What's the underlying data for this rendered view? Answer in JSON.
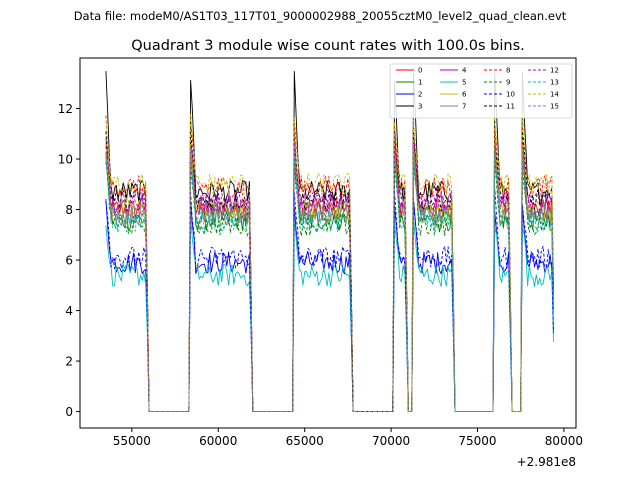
{
  "suptitle": "Data file: modeM0/AS1T03_117T01_9000002988_20055cztM0_level2_quad_clean.evt",
  "chart_data": {
    "type": "line",
    "title": "Quadrant 3 module wise count rates with 100.0s bins.",
    "xlabel": "",
    "ylabel": "",
    "x_offset_label": "+2.981e8",
    "xlim": [
      52000,
      80700
    ],
    "ylim": [
      -0.65,
      14.0
    ],
    "xticks": [
      55000,
      60000,
      65000,
      70000,
      75000,
      80000
    ],
    "xtick_labels": [
      "55000",
      "60000",
      "65000",
      "70000",
      "75000",
      "80000"
    ],
    "yticks": [
      0,
      2,
      4,
      6,
      8,
      10,
      12
    ],
    "ytick_labels": [
      "0",
      "2",
      "4",
      "6",
      "8",
      "10",
      "12"
    ],
    "legend_position": "top-right",
    "segments": [
      {
        "start": 53500,
        "end": 55900
      },
      {
        "start": 58400,
        "end": 61900
      },
      {
        "start": 64400,
        "end": 67700
      },
      {
        "start": 70200,
        "end": 70900
      },
      {
        "start": 71300,
        "end": 73600
      },
      {
        "start": 76000,
        "end": 76900
      },
      {
        "start": 77600,
        "end": 79400
      }
    ],
    "zero_level": 0,
    "series": [
      {
        "name": "0",
        "color": "#ff0000",
        "dashed": false,
        "level": 8.0,
        "peak": 10.8
      },
      {
        "name": "1",
        "color": "#008000",
        "dashed": false,
        "level": 7.6,
        "peak": 10.2
      },
      {
        "name": "2",
        "color": "#0000ff",
        "dashed": false,
        "level": 5.9,
        "peak": 8.2
      },
      {
        "name": "3",
        "color": "#000000",
        "dashed": false,
        "level": 8.7,
        "peak": 13.3
      },
      {
        "name": "4",
        "color": "#bf00bf",
        "dashed": false,
        "level": 8.2,
        "peak": 10.6
      },
      {
        "name": "5",
        "color": "#00bfbf",
        "dashed": false,
        "level": 5.4,
        "peak": 7.5
      },
      {
        "name": "6",
        "color": "#bfbf00",
        "dashed": false,
        "level": 8.0,
        "peak": 10.5
      },
      {
        "name": "7",
        "color": "#808080",
        "dashed": false,
        "level": 7.8,
        "peak": 10.3
      },
      {
        "name": "8",
        "color": "#ff0000",
        "dashed": true,
        "level": 8.9,
        "peak": 11.5
      },
      {
        "name": "9",
        "color": "#008000",
        "dashed": true,
        "level": 7.4,
        "peak": 10.0
      },
      {
        "name": "10",
        "color": "#0000ff",
        "dashed": true,
        "level": 6.1,
        "peak": 8.5
      },
      {
        "name": "11",
        "color": "#000000",
        "dashed": true,
        "level": 8.4,
        "peak": 11.0
      },
      {
        "name": "12",
        "color": "#bf00bf",
        "dashed": true,
        "level": 8.3,
        "peak": 10.8
      },
      {
        "name": "13",
        "color": "#00bfbf",
        "dashed": true,
        "level": 7.5,
        "peak": 10.0
      },
      {
        "name": "14",
        "color": "#bfbf00",
        "dashed": true,
        "level": 9.0,
        "peak": 11.7
      },
      {
        "name": "15",
        "color": "#808080",
        "dashed": true,
        "level": 7.9,
        "peak": 10.4
      }
    ]
  }
}
